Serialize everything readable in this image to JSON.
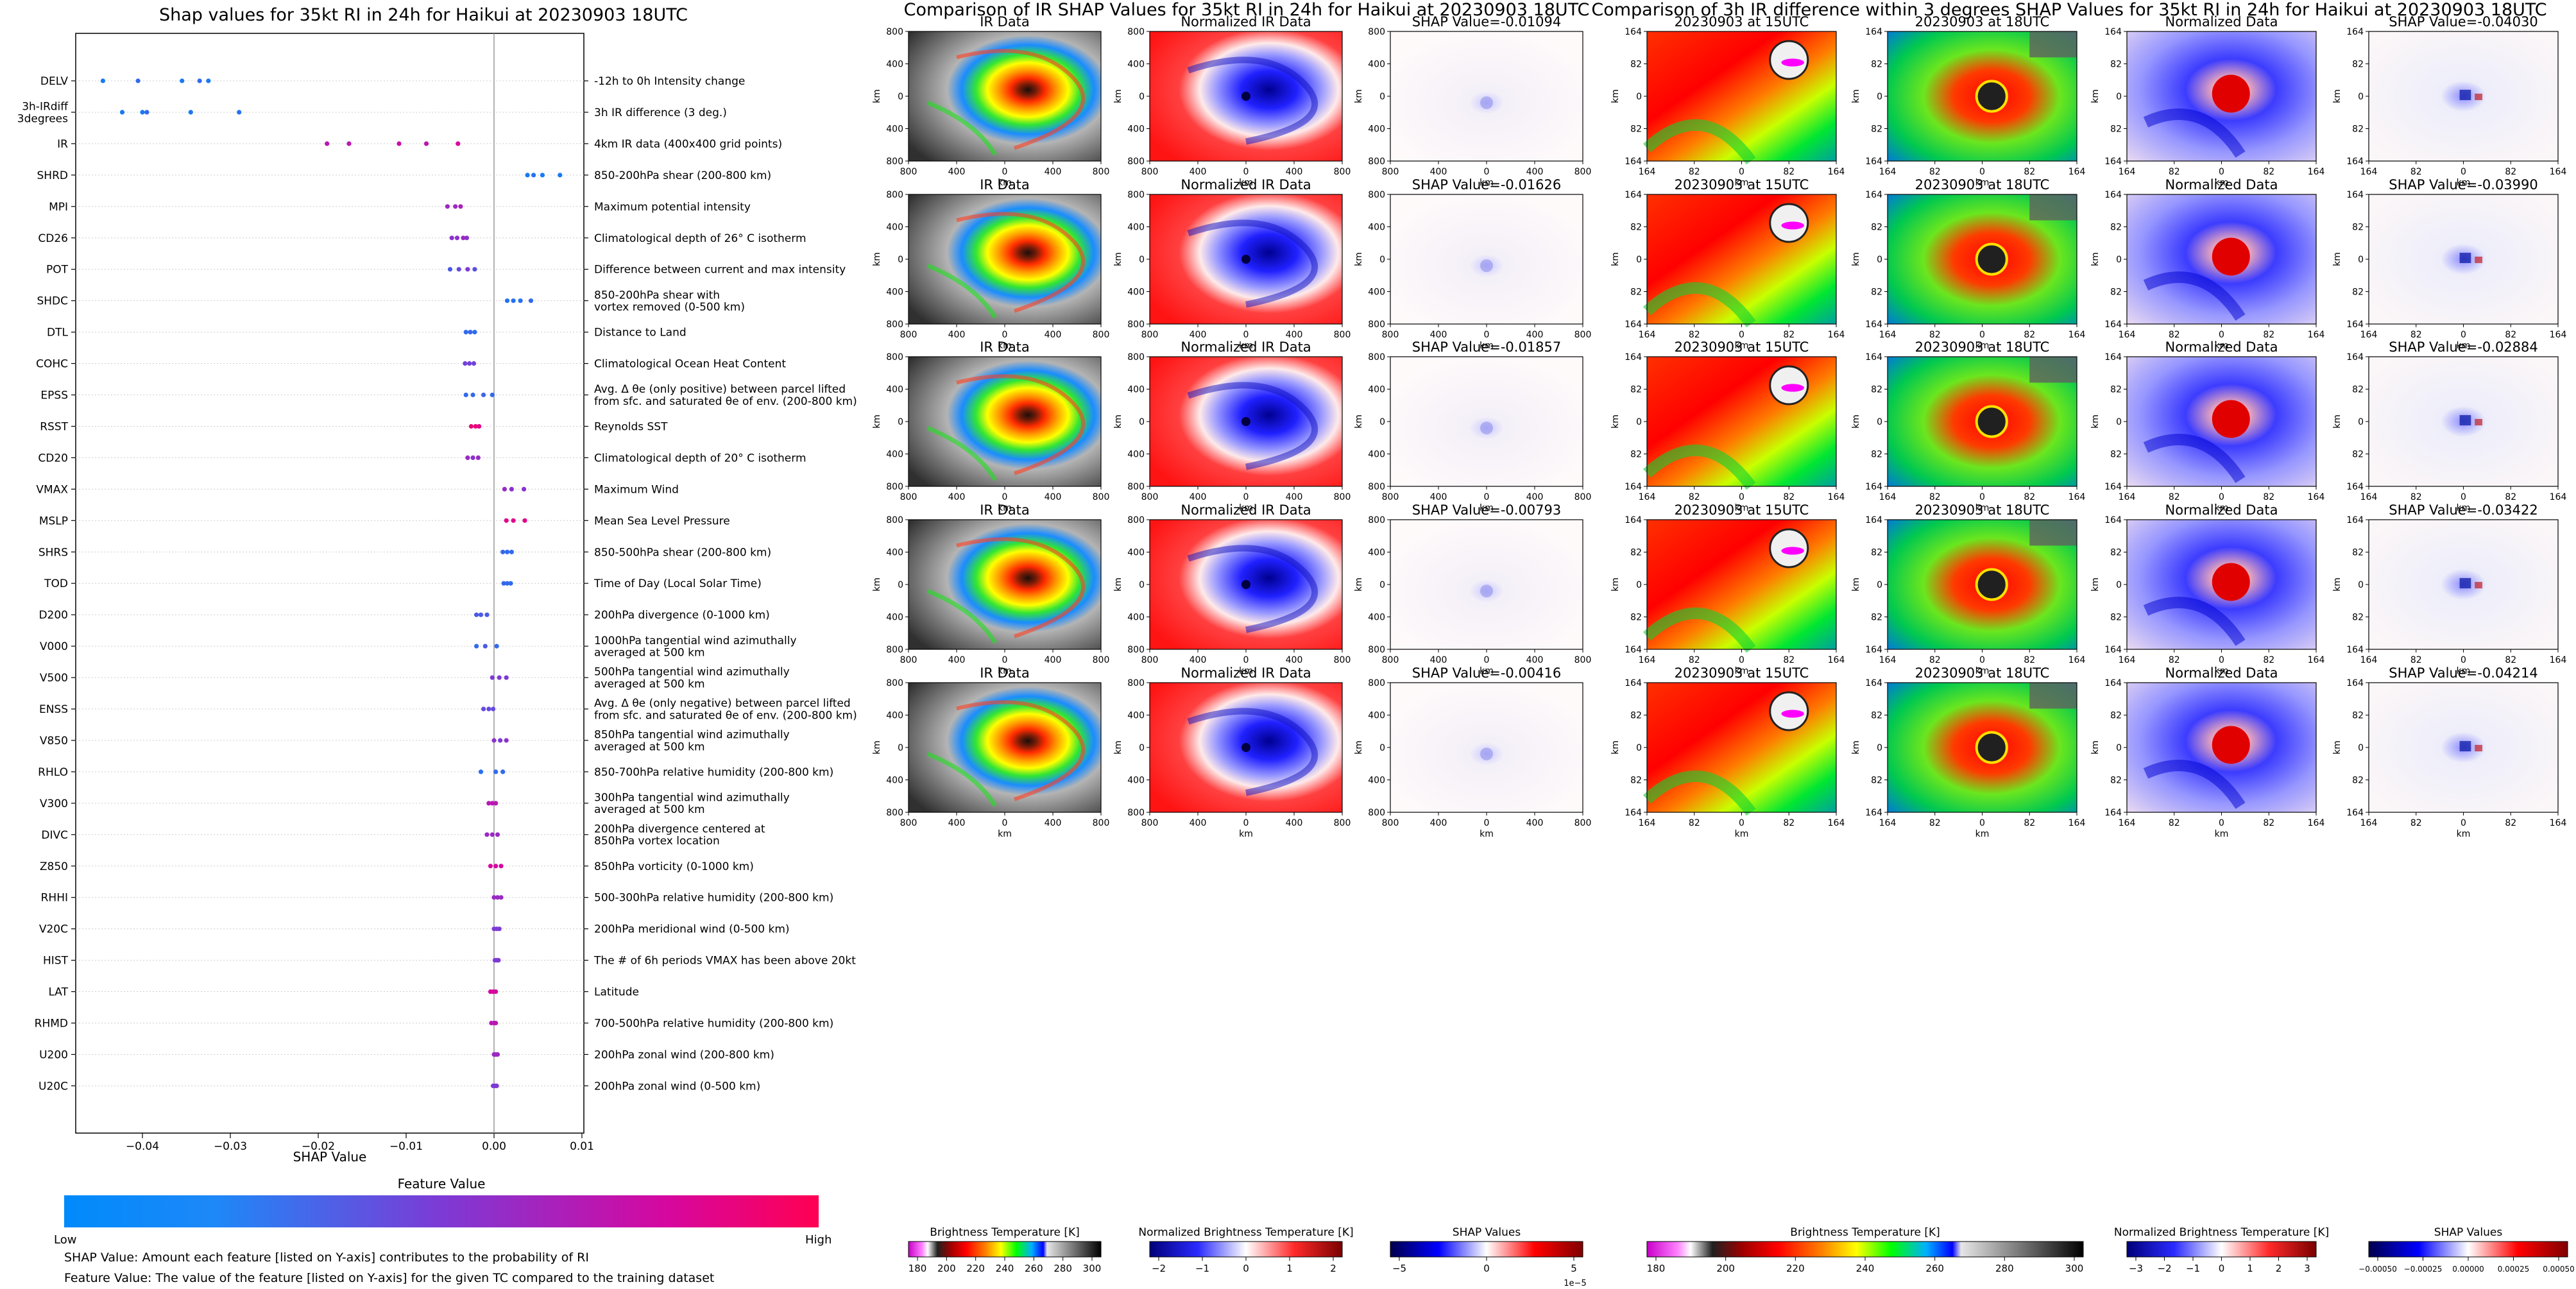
{
  "shap_panel": {
    "title": "Shap values for 35kt RI in 24h for Haikui at 20230903 18UTC",
    "xlabel": "SHAP Value",
    "xticks": [
      "−0.04",
      "−0.03",
      "−0.02",
      "−0.01",
      "0.00",
      "0.01"
    ],
    "colorbar_title": "Feature Value",
    "colorbar_low": "Low",
    "colorbar_high": "High",
    "footnote1": "SHAP Value: Amount each feature [listed on Y-axis] contributes to the probability of RI",
    "footnote2": "Feature Value: The value of the feature [listed on Y-axis] for the given TC compared to the training dataset",
    "features": [
      {
        "code": "DELV",
        "desc": "-12h to 0h Intensity change"
      },
      {
        "code": "3h-IRdiff\n3degrees",
        "desc": "3h IR difference (3 deg.)"
      },
      {
        "code": "IR",
        "desc": "4km IR data (400x400 grid points)"
      },
      {
        "code": "SHRD",
        "desc": "850-200hPa shear (200-800 km)"
      },
      {
        "code": "MPI",
        "desc": "Maximum potential intensity"
      },
      {
        "code": "CD26",
        "desc": "Climatological depth of 26° C isotherm"
      },
      {
        "code": "POT",
        "desc": "Difference between current and max intensity"
      },
      {
        "code": "SHDC",
        "desc": "850-200hPa shear with\nvortex removed (0-500 km)"
      },
      {
        "code": "DTL",
        "desc": "Distance to Land"
      },
      {
        "code": "COHC",
        "desc": "Climatological Ocean Heat Content"
      },
      {
        "code": "EPSS",
        "desc": "Avg. Δ θe (only positive) between parcel lifted\nfrom sfc. and saturated θe of env. (200-800 km)"
      },
      {
        "code": "RSST",
        "desc": "Reynolds SST"
      },
      {
        "code": "CD20",
        "desc": "Climatological depth of 20° C isotherm"
      },
      {
        "code": "VMAX",
        "desc": "Maximum Wind"
      },
      {
        "code": "MSLP",
        "desc": "Mean Sea Level Pressure"
      },
      {
        "code": "SHRS",
        "desc": "850-500hPa shear (200-800 km)"
      },
      {
        "code": "TOD",
        "desc": "Time of Day (Local Solar Time)"
      },
      {
        "code": "D200",
        "desc": "200hPa divergence (0-1000 km)"
      },
      {
        "code": "V000",
        "desc": "1000hPa tangential wind azimuthally\naveraged at 500 km"
      },
      {
        "code": "V500",
        "desc": "500hPa tangential wind azimuthally\naveraged at 500 km"
      },
      {
        "code": "ENSS",
        "desc": "Avg. Δ θe (only negative) between parcel lifted\nfrom sfc. and saturated θe of env. (200-800 km)"
      },
      {
        "code": "V850",
        "desc": "850hPa tangential wind azimuthally\naveraged at 500 km"
      },
      {
        "code": "RHLO",
        "desc": "850-700hPa relative humidity (200-800 km)"
      },
      {
        "code": "V300",
        "desc": "300hPa tangential wind azimuthally\naveraged at 500 km"
      },
      {
        "code": "DIVC",
        "desc": "200hPa divergence centered at\n850hPa vortex location"
      },
      {
        "code": "Z850",
        "desc": "850hPa vorticity (0-1000 km)"
      },
      {
        "code": "RHHI",
        "desc": "500-300hPa relative humidity (200-800 km)"
      },
      {
        "code": "V20C",
        "desc": "200hPa meridional wind (0-500 km)"
      },
      {
        "code": "HIST",
        "desc": "The # of 6h periods VMAX has been above 20kt"
      },
      {
        "code": "LAT",
        "desc": "Latitude"
      },
      {
        "code": "RHMD",
        "desc": "700-500hPa relative humidity (200-800 km)"
      },
      {
        "code": "U200",
        "desc": "200hPa zonal wind (200-800 km)"
      },
      {
        "code": "U20C",
        "desc": "200hPa zonal wind (0-500 km)"
      }
    ]
  },
  "ir_panel": {
    "title": "Comparison of IR SHAP Values for 35kt RI in 24h for Haikui at 20230903 18UTC",
    "col_titles": [
      "IR Data",
      "Normalized IR Data"
    ],
    "shap_titles": [
      "SHAP Value=-0.01094",
      "SHAP Value=-0.01626",
      "SHAP Value=-0.01857",
      "SHAP Value=-0.00793",
      "SHAP Value=-0.00416"
    ],
    "axis_unit": "km",
    "yticks": [
      "800",
      "400",
      "0",
      "400",
      "800"
    ],
    "xticks": [
      "800",
      "400",
      "0",
      "400",
      "800"
    ],
    "cbar1_label": "Brightness Temperature [K]",
    "cbar1_ticks": [
      "180",
      "200",
      "220",
      "240",
      "260",
      "280",
      "300"
    ],
    "cbar2_label": "Normalized Brightness Temperature [K]",
    "cbar2_ticks": [
      "−2",
      "−1",
      "0",
      "1",
      "2"
    ],
    "cbar3_label": "SHAP Values",
    "cbar3_ticks": [
      "−5",
      "0",
      "5"
    ],
    "cbar3_exp": "1e−5"
  },
  "diff_panel": {
    "title": "Comparison of 3h IR difference within 3 degrees SHAP Values for 35kt RI in 24h for Haikui at 20230903 18UTC",
    "col_titles": [
      "20230903 at 15UTC",
      "20230903 at 18UTC",
      "Normalized Data"
    ],
    "shap_titles": [
      "SHAP Value=-0.04030",
      "SHAP Value=-0.03990",
      "SHAP Value=-0.02884",
      "SHAP Value=-0.03422",
      "SHAP Value=-0.04214"
    ],
    "axis_unit": "km",
    "yticks": [
      "164",
      "82",
      "0",
      "82",
      "164"
    ],
    "xticks": [
      "164",
      "82",
      "0",
      "82",
      "164"
    ],
    "cbar1_label": "Brightness Temperature [K]",
    "cbar1_ticks": [
      "180",
      "200",
      "220",
      "240",
      "260",
      "280",
      "300"
    ],
    "cbar2_label": "Normalized Brightness Temperature [K]",
    "cbar2_ticks": [
      "−3",
      "−2",
      "−1",
      "0",
      "1",
      "2",
      "3"
    ],
    "cbar3_label": "SHAP Values",
    "cbar3_ticks": [
      "−0.00050",
      "−0.00025",
      "0.00000",
      "0.00025",
      "0.00050"
    ]
  },
  "chart_data": {
    "type": "scatter",
    "title": "Shap values for 35kt RI in 24h for Haikui at 20230903 18UTC",
    "xlabel": "SHAP Value",
    "xlim": [
      -0.047,
      0.01
    ],
    "grid": false,
    "colorbar": "Feature Value (Low → High)",
    "points": [
      [
        0,
        -0.0445,
        0.1
      ],
      [
        0,
        -0.0405,
        0.2
      ],
      [
        0,
        -0.0355,
        0.1
      ],
      [
        0,
        -0.0335,
        0.2
      ],
      [
        0,
        -0.0325,
        0.1
      ],
      [
        1,
        -0.0423,
        0.1
      ],
      [
        1,
        -0.04,
        0.1
      ],
      [
        1,
        -0.0395,
        0.2
      ],
      [
        1,
        -0.0345,
        0.1
      ],
      [
        1,
        -0.029,
        0.15
      ],
      [
        2,
        -0.019,
        0.7
      ],
      [
        2,
        -0.0165,
        0.7
      ],
      [
        2,
        -0.0108,
        0.75
      ],
      [
        2,
        -0.0077,
        0.72
      ],
      [
        2,
        -0.0041,
        0.8
      ],
      [
        3,
        0.0038,
        0.1
      ],
      [
        3,
        0.0045,
        0.15
      ],
      [
        3,
        0.0055,
        0.1
      ],
      [
        3,
        0.0075,
        0.1
      ],
      [
        4,
        -0.0053,
        0.6
      ],
      [
        4,
        -0.0044,
        0.6
      ],
      [
        4,
        -0.0038,
        0.65
      ],
      [
        5,
        -0.0048,
        0.55
      ],
      [
        5,
        -0.0042,
        0.55
      ],
      [
        5,
        -0.0035,
        0.6
      ],
      [
        5,
        -0.0031,
        0.55
      ],
      [
        6,
        -0.005,
        0.3
      ],
      [
        6,
        -0.004,
        0.4
      ],
      [
        6,
        -0.003,
        0.5
      ],
      [
        6,
        -0.0022,
        0.35
      ],
      [
        7,
        0.0015,
        0.15
      ],
      [
        7,
        0.0022,
        0.15
      ],
      [
        7,
        0.003,
        0.15
      ],
      [
        7,
        0.0042,
        0.2
      ],
      [
        8,
        -0.0032,
        0.2
      ],
      [
        8,
        -0.0027,
        0.2
      ],
      [
        8,
        -0.0022,
        0.2
      ],
      [
        9,
        -0.0033,
        0.45
      ],
      [
        9,
        -0.0028,
        0.45
      ],
      [
        9,
        -0.0023,
        0.45
      ],
      [
        10,
        -0.0032,
        0.2
      ],
      [
        10,
        -0.0024,
        0.2
      ],
      [
        10,
        -0.0012,
        0.25
      ],
      [
        10,
        -0.0002,
        0.2
      ],
      [
        11,
        -0.0026,
        0.9
      ],
      [
        11,
        -0.0021,
        0.9
      ],
      [
        11,
        -0.0017,
        0.85
      ],
      [
        12,
        -0.003,
        0.6
      ],
      [
        12,
        -0.0024,
        0.55
      ],
      [
        12,
        -0.0018,
        0.6
      ],
      [
        13,
        0.0012,
        0.6
      ],
      [
        13,
        0.002,
        0.55
      ],
      [
        13,
        0.0034,
        0.55
      ],
      [
        14,
        0.0014,
        0.85
      ],
      [
        14,
        0.0022,
        0.85
      ],
      [
        14,
        0.0035,
        0.85
      ],
      [
        15,
        0.001,
        0.2
      ],
      [
        15,
        0.0015,
        0.2
      ],
      [
        15,
        0.002,
        0.2
      ],
      [
        16,
        0.0011,
        0.2
      ],
      [
        16,
        0.0015,
        0.2
      ],
      [
        16,
        0.0019,
        0.2
      ],
      [
        17,
        -0.002,
        0.3
      ],
      [
        17,
        -0.0015,
        0.3
      ],
      [
        17,
        -0.0008,
        0.3
      ],
      [
        18,
        -0.002,
        0.2
      ],
      [
        18,
        -0.001,
        0.3
      ],
      [
        18,
        0.0003,
        0.2
      ],
      [
        19,
        -0.0002,
        0.5
      ],
      [
        19,
        0.0006,
        0.5
      ],
      [
        19,
        0.0014,
        0.5
      ],
      [
        20,
        -0.0012,
        0.4
      ],
      [
        20,
        -0.0006,
        0.4
      ],
      [
        20,
        -0.0001,
        0.4
      ],
      [
        21,
        0.0,
        0.55
      ],
      [
        21,
        0.0007,
        0.5
      ],
      [
        21,
        0.0014,
        0.55
      ],
      [
        22,
        -0.0015,
        0.15
      ],
      [
        22,
        0.0002,
        0.2
      ],
      [
        22,
        0.001,
        0.2
      ],
      [
        23,
        -0.0006,
        0.7
      ],
      [
        23,
        -0.0002,
        0.7
      ],
      [
        23,
        0.0002,
        0.7
      ],
      [
        24,
        -0.0008,
        0.6
      ],
      [
        24,
        -0.0002,
        0.6
      ],
      [
        24,
        0.0004,
        0.6
      ],
      [
        25,
        -0.0004,
        0.8
      ],
      [
        25,
        0.0002,
        0.8
      ],
      [
        25,
        0.0008,
        0.8
      ],
      [
        26,
        0.0,
        0.6
      ],
      [
        26,
        0.0004,
        0.6
      ],
      [
        26,
        0.0008,
        0.6
      ],
      [
        27,
        0.0,
        0.5
      ],
      [
        27,
        0.0003,
        0.5
      ],
      [
        27,
        0.0006,
        0.5
      ],
      [
        28,
        0.0001,
        0.5
      ],
      [
        28,
        0.0003,
        0.5
      ],
      [
        28,
        0.0005,
        0.5
      ],
      [
        29,
        -0.0004,
        0.8
      ],
      [
        29,
        -0.0001,
        0.8
      ],
      [
        29,
        0.0002,
        0.8
      ],
      [
        30,
        -0.0003,
        0.7
      ],
      [
        30,
        0.0,
        0.7
      ],
      [
        30,
        0.0002,
        0.7
      ],
      [
        31,
        0.0,
        0.6
      ],
      [
        31,
        0.0002,
        0.6
      ],
      [
        31,
        0.0004,
        0.6
      ],
      [
        32,
        -0.0001,
        0.5
      ],
      [
        32,
        0.0001,
        0.5
      ],
      [
        32,
        0.0003,
        0.5
      ]
    ]
  }
}
